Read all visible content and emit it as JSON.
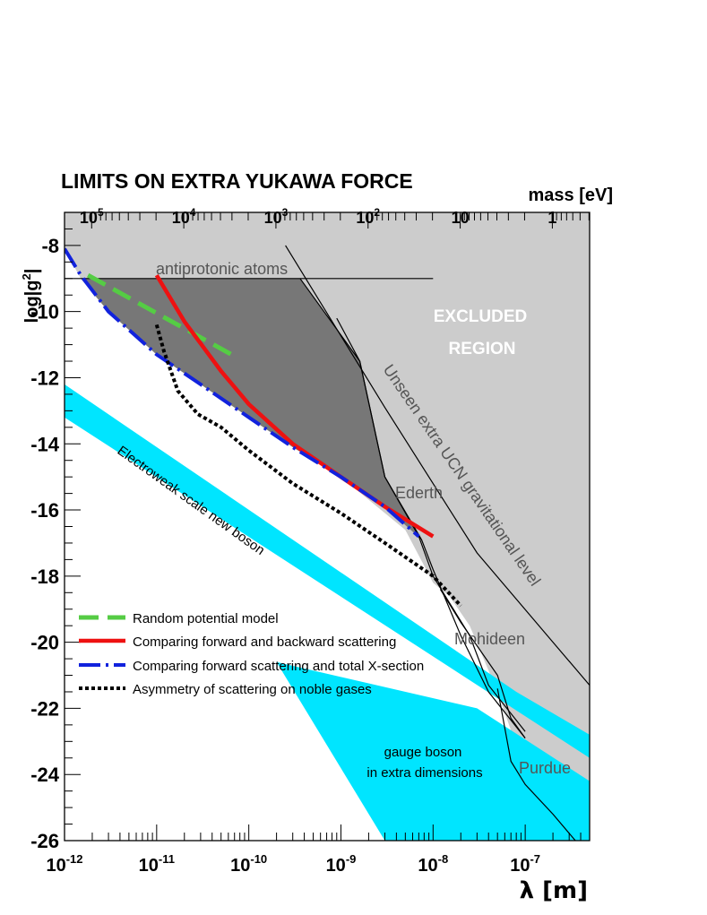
{
  "chart_data": {
    "type": "line",
    "title": "LIMITS ON EXTRA YUKAWA FORCE",
    "xlabel": "λ  [m]",
    "ylabel": "log|g²|",
    "top_axis_label": "mass [eV]",
    "x_scale": "log",
    "xlim": [
      1e-12,
      5e-07
    ],
    "ylim": [
      -26,
      -7
    ],
    "x_ticks": [
      {
        "base": "10",
        "exp": "-12",
        "value": 1e-12
      },
      {
        "base": "10",
        "exp": "-11",
        "value": 1e-11
      },
      {
        "base": "10",
        "exp": "-10",
        "value": 1e-10
      },
      {
        "base": "10",
        "exp": "-9",
        "value": 1e-09
      },
      {
        "base": "10",
        "exp": "-8",
        "value": 1e-08
      },
      {
        "base": "10",
        "exp": "-7",
        "value": 1e-07
      }
    ],
    "y_ticks": [
      "-26",
      "-24",
      "-22",
      "-20",
      "-18",
      "-16",
      "-14",
      "-12",
      "-10",
      "-8"
    ],
    "mass_ticks": [
      {
        "base": "10",
        "exp": "5",
        "lambda": 1.97e-12
      },
      {
        "base": "10",
        "exp": "4",
        "lambda": 1.97e-11
      },
      {
        "base": "10",
        "exp": "3",
        "lambda": 1.97e-10
      },
      {
        "base": "10",
        "exp": "2",
        "lambda": 1.97e-09
      },
      {
        "base": "10",
        "exp": "",
        "lambda": 1.97e-08
      },
      {
        "base": "1",
        "exp": "",
        "lambda": 1.97e-07
      }
    ],
    "region_labels": {
      "excluded_line1": "EXCLUDED",
      "excluded_line2": "REGION",
      "antiprotonic": "antiprotonic atoms",
      "ucn": "Unseen extra UCN gravitational level",
      "ederth": "Ederth",
      "mohideen": "Mohideen",
      "purdue": "Purdue",
      "electroweak": "Electroweak scale new boson",
      "gauge_line1": "gauge boson",
      "gauge_line2": "in extra dimensions"
    },
    "colors": {
      "excluded": "#cccccc",
      "dark_region": "#777777",
      "band": "#00e5ff",
      "green": "#55cc44",
      "red": "#ee1111",
      "blue": "#1122dd",
      "black": "#000000"
    },
    "legend_placement": "lower-left",
    "series": [
      {
        "name": "Random potential model",
        "color": "#55cc44",
        "style": "dashed",
        "points": [
          [
            1.8e-12,
            -8.9
          ],
          [
            6.5e-11,
            -11.3
          ]
        ]
      },
      {
        "name": "Comparing forward and backward scattering",
        "color": "#ee1111",
        "style": "solid",
        "points": [
          [
            1e-11,
            -8.9
          ],
          [
            2e-11,
            -10.3
          ],
          [
            5e-11,
            -11.8
          ],
          [
            1e-10,
            -12.8
          ],
          [
            3e-10,
            -14.0
          ],
          [
            1e-09,
            -15.0
          ],
          [
            3e-09,
            -15.9
          ],
          [
            1e-08,
            -16.8
          ]
        ]
      },
      {
        "name": "Comparing forward scattering and total X-section",
        "color": "#1122dd",
        "style": "dashdot",
        "points": [
          [
            1e-12,
            -8.1
          ],
          [
            1.5e-12,
            -8.9
          ],
          [
            3e-12,
            -10.0
          ],
          [
            1e-11,
            -11.3
          ],
          [
            3e-11,
            -12.2
          ],
          [
            1e-10,
            -13.2
          ],
          [
            3e-10,
            -14.1
          ],
          [
            1e-09,
            -15.0
          ],
          [
            3e-09,
            -15.9
          ],
          [
            7e-09,
            -16.8
          ]
        ]
      },
      {
        "name": "Asymmetry of scattering on noble gases",
        "color": "#000000",
        "style": "dotted",
        "points": [
          [
            1e-11,
            -10.4
          ],
          [
            1.2e-11,
            -11.2
          ],
          [
            1.7e-11,
            -12.4
          ],
          [
            2.8e-11,
            -13.1
          ],
          [
            5e-11,
            -13.5
          ],
          [
            1e-10,
            -14.2
          ],
          [
            3e-10,
            -15.2
          ],
          [
            1e-09,
            -16.1
          ],
          [
            3e-09,
            -17.0
          ],
          [
            1e-08,
            -18.0
          ],
          [
            2e-08,
            -18.9
          ]
        ]
      }
    ]
  }
}
